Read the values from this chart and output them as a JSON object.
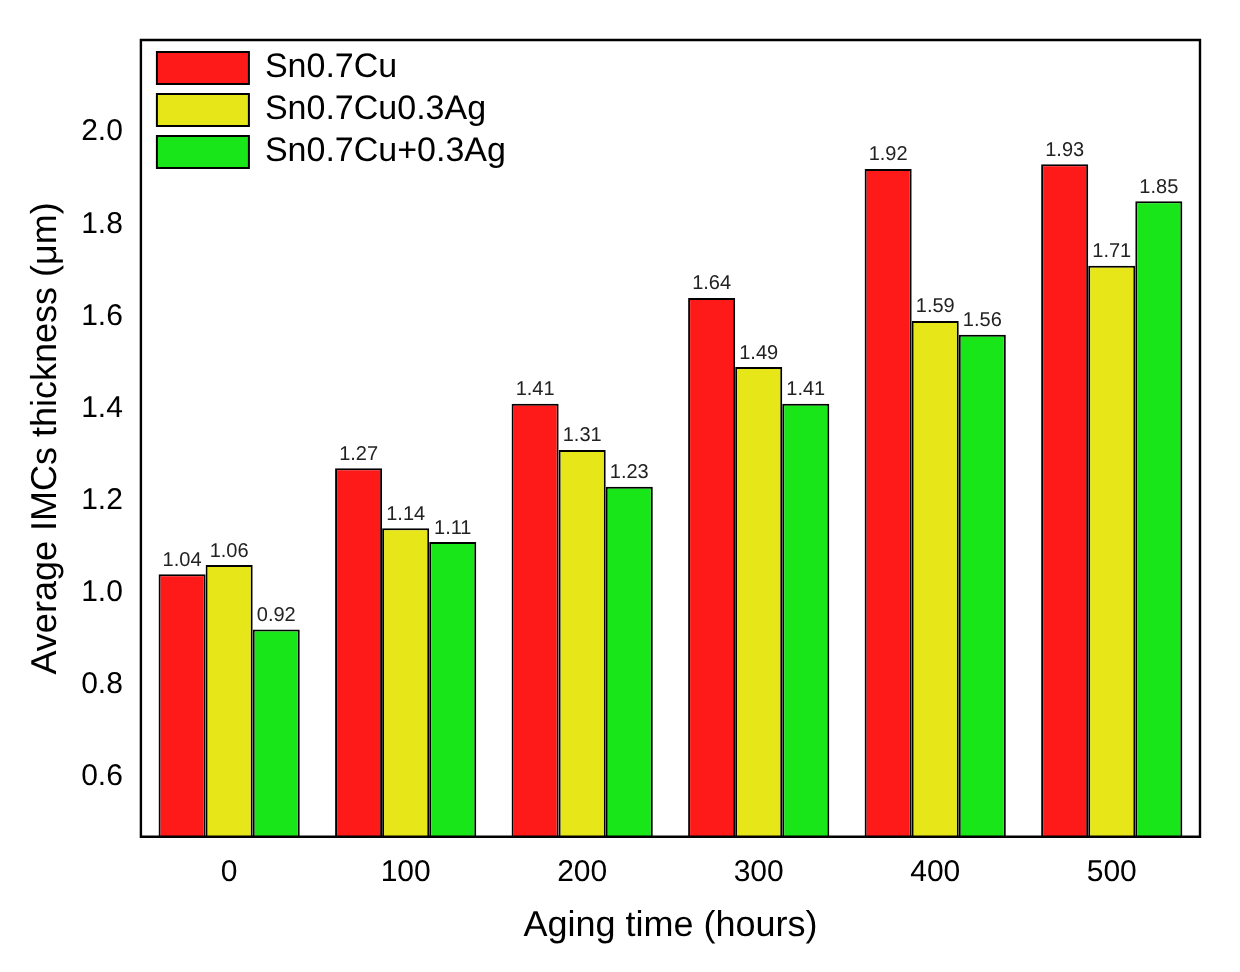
{
  "chart_data": {
    "type": "bar",
    "xlabel": "Aging time (hours)",
    "ylabel": "Average IMCs thickness (μm)",
    "categories": [
      "0",
      "100",
      "200",
      "300",
      "400",
      "500"
    ],
    "series": [
      {
        "name": "Sn0.7Cu",
        "color": "#ff1a1a",
        "values": [
          1.04,
          1.27,
          1.41,
          1.64,
          1.92,
          1.93
        ]
      },
      {
        "name": "Sn0.7Cu0.3Ag",
        "color": "#e6e619",
        "values": [
          1.06,
          1.14,
          1.31,
          1.49,
          1.59,
          1.71
        ]
      },
      {
        "name": "Sn0.7Cu+0.3Ag",
        "color": "#19e619",
        "values": [
          0.92,
          1.11,
          1.23,
          1.41,
          1.56,
          1.85
        ]
      }
    ],
    "ylim": [
      0.47,
      2.2
    ],
    "yticks": [
      0.6,
      0.8,
      {
        "value": 1,
        "label": "1.0"
      },
      1.2,
      1.4,
      1.6,
      1.8,
      {
        "value": 2,
        "label": "2.0"
      }
    ],
    "data_labels": true,
    "legend": "top left",
    "grid": false
  }
}
